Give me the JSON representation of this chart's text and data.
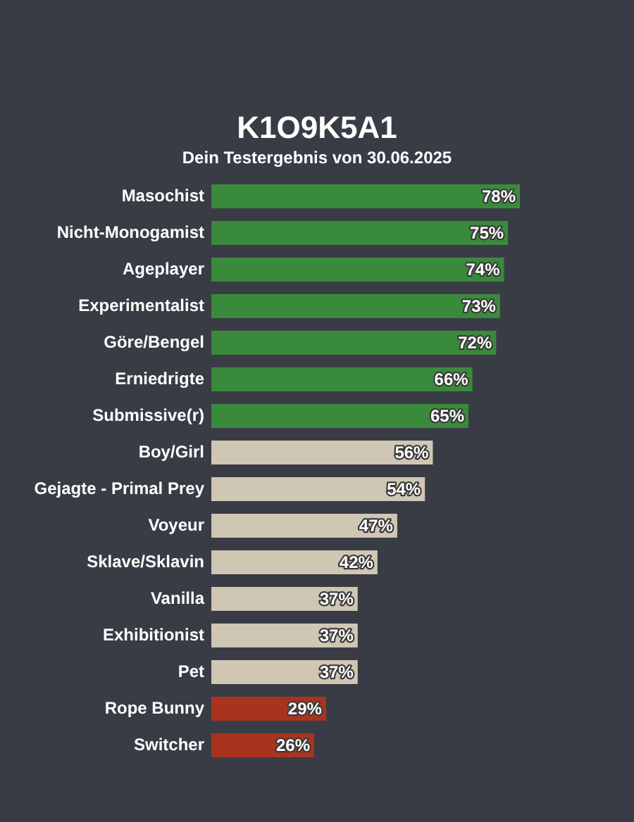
{
  "chart_data": {
    "type": "bar",
    "orientation": "horizontal",
    "title": "K1O9K5A1",
    "subtitle": "Dein Testergebnis von 30.06.2025",
    "categories": [
      "Masochist",
      "Nicht-Monogamist",
      "Ageplayer",
      "Experimentalist",
      "Göre/Bengel",
      "Erniedrigte",
      "Submissive(r)",
      "Boy/Girl",
      "Gejagte - Primal Prey",
      "Voyeur",
      "Sklave/Sklavin",
      "Vanilla",
      "Exhibitionist",
      "Pet",
      "Rope Bunny",
      "Switcher"
    ],
    "values": [
      78,
      75,
      74,
      73,
      72,
      66,
      65,
      56,
      54,
      47,
      42,
      37,
      37,
      37,
      29,
      26
    ],
    "value_labels": [
      "78%",
      "75%",
      "74%",
      "73%",
      "72%",
      "66%",
      "65%",
      "56%",
      "54%",
      "47%",
      "42%",
      "37%",
      "37%",
      "37%",
      "29%",
      "26%"
    ],
    "colors": [
      "#3a8a3c",
      "#3a8a3c",
      "#3a8a3c",
      "#3a8a3c",
      "#3a8a3c",
      "#3a8a3c",
      "#3a8a3c",
      "#cfc6b4",
      "#cfc6b4",
      "#cfc6b4",
      "#cfc6b4",
      "#cfc6b4",
      "#cfc6b4",
      "#cfc6b4",
      "#a8331f",
      "#a8331f"
    ],
    "tick_labels": "y"
  }
}
